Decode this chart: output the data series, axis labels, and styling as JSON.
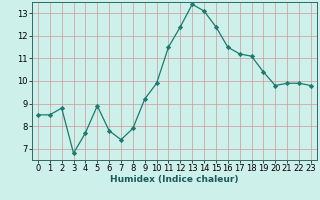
{
  "x": [
    0,
    1,
    2,
    3,
    4,
    5,
    6,
    7,
    8,
    9,
    10,
    11,
    12,
    13,
    14,
    15,
    16,
    17,
    18,
    19,
    20,
    21,
    22,
    23
  ],
  "y": [
    8.5,
    8.5,
    8.8,
    6.8,
    7.7,
    8.9,
    7.8,
    7.4,
    7.9,
    9.2,
    9.9,
    11.5,
    12.4,
    13.4,
    13.1,
    12.4,
    11.5,
    11.2,
    11.1,
    10.4,
    9.8,
    9.9,
    9.9,
    9.8
  ],
  "line_color": "#1b7a6e",
  "marker": "D",
  "marker_size": 2.2,
  "bg_color": "#cef0ea",
  "grid_color": "#b8b8b8",
  "grid_color_major": "#cc9999",
  "xlabel": "Humidex (Indice chaleur)",
  "xlim": [
    -0.5,
    23.5
  ],
  "ylim": [
    6.5,
    13.5
  ],
  "yticks": [
    7,
    8,
    9,
    10,
    11,
    12,
    13
  ],
  "xticks": [
    0,
    1,
    2,
    3,
    4,
    5,
    6,
    7,
    8,
    9,
    10,
    11,
    12,
    13,
    14,
    15,
    16,
    17,
    18,
    19,
    20,
    21,
    22,
    23
  ],
  "xlabel_fontsize": 6.5,
  "tick_fontsize": 6.0,
  "linewidth": 0.9
}
